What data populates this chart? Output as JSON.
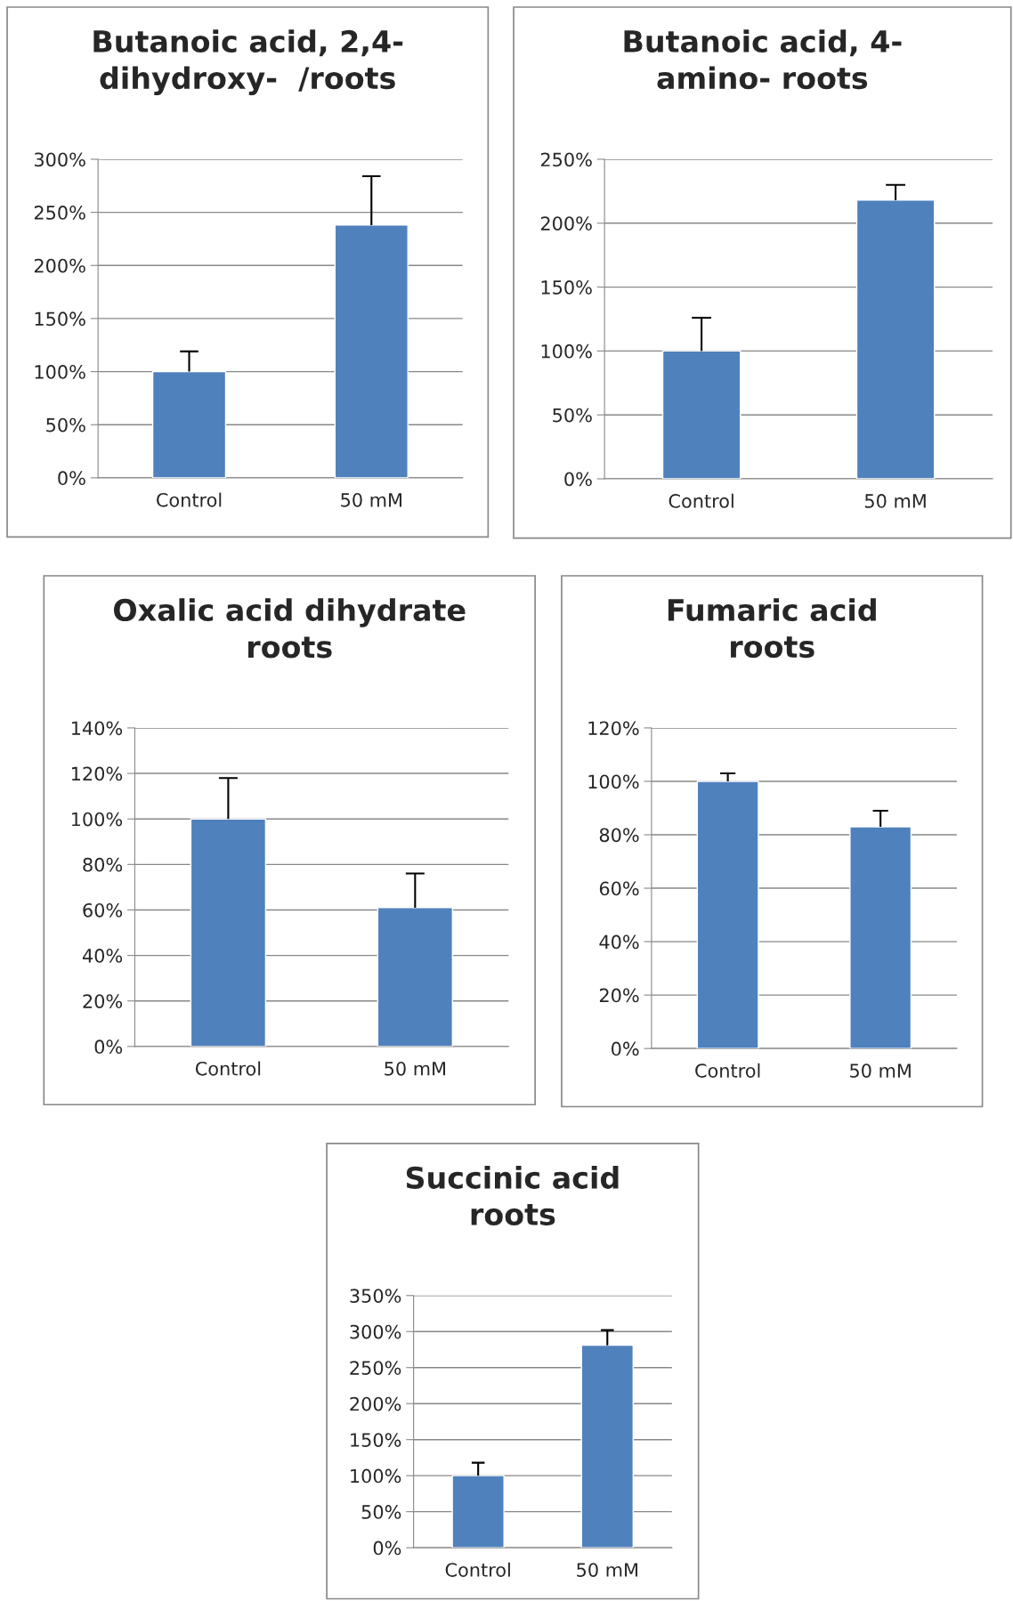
{
  "chart_data": [
    {
      "type": "bar",
      "title": "Butanoic acid, 2,4-\ndihydroxy-  /roots",
      "categories": [
        "Control",
        "50 mM"
      ],
      "values": [
        100,
        238
      ],
      "errors": [
        [
          100,
          119
        ],
        [
          238,
          284
        ]
      ],
      "color": "#4f81bd",
      "ylim": [
        0,
        300
      ],
      "yticks": [
        {
          "value": 0,
          "label": "0%"
        },
        {
          "value": 50,
          "label": "50%"
        },
        {
          "value": 100,
          "label": "100%"
        },
        {
          "value": 150,
          "label": "150%"
        },
        {
          "value": 200,
          "label": "200%"
        },
        {
          "value": 250,
          "label": "250%"
        },
        {
          "value": 300,
          "label": "300%"
        }
      ],
      "grid": "y",
      "legend": false
    },
    {
      "type": "bar",
      "title": "Butanoic acid, 4-\namino- roots",
      "categories": [
        "Control",
        "50 mM"
      ],
      "values": [
        100,
        218
      ],
      "errors": [
        [
          100,
          126
        ],
        [
          218,
          230
        ]
      ],
      "color": "#4f81bd",
      "ylim": [
        0,
        250
      ],
      "yticks": [
        {
          "value": 0,
          "label": "0%"
        },
        {
          "value": 50,
          "label": "50%"
        },
        {
          "value": 100,
          "label": "100%"
        },
        {
          "value": 150,
          "label": "150%"
        },
        {
          "value": 200,
          "label": "200%"
        },
        {
          "value": 250,
          "label": "250%"
        }
      ],
      "grid": "y",
      "legend": false
    },
    {
      "type": "bar",
      "title": "Oxalic acid dihydrate\nroots",
      "categories": [
        "Control",
        "50 mM"
      ],
      "values": [
        100,
        61
      ],
      "errors": [
        [
          100,
          118
        ],
        [
          61,
          76
        ]
      ],
      "color": "#4f81bd",
      "ylim": [
        0,
        140
      ],
      "yticks": [
        {
          "value": 0,
          "label": "0%"
        },
        {
          "value": 20,
          "label": "20%"
        },
        {
          "value": 40,
          "label": "40%"
        },
        {
          "value": 60,
          "label": "60%"
        },
        {
          "value": 80,
          "label": "80%"
        },
        {
          "value": 100,
          "label": "100%"
        },
        {
          "value": 120,
          "label": "120%"
        },
        {
          "value": 140,
          "label": "140%"
        }
      ],
      "grid": "y",
      "legend": false
    },
    {
      "type": "bar",
      "title": "Fumaric acid\nroots",
      "categories": [
        "Control",
        "50 mM"
      ],
      "values": [
        100,
        83
      ],
      "errors": [
        [
          100,
          103
        ],
        [
          83,
          89
        ]
      ],
      "color": "#4f81bd",
      "ylim": [
        0,
        120
      ],
      "yticks": [
        {
          "value": 0,
          "label": "0%"
        },
        {
          "value": 20,
          "label": "20%"
        },
        {
          "value": 40,
          "label": "40%"
        },
        {
          "value": 60,
          "label": "60%"
        },
        {
          "value": 80,
          "label": "80%"
        },
        {
          "value": 100,
          "label": "100%"
        },
        {
          "value": 120,
          "label": "120%"
        }
      ],
      "grid": "y",
      "legend": false
    },
    {
      "type": "bar",
      "title": "Succinic acid\nroots",
      "categories": [
        "Control",
        "50 mM"
      ],
      "values": [
        100,
        281
      ],
      "errors": [
        [
          100,
          118
        ],
        [
          281,
          302
        ]
      ],
      "color": "#4f81bd",
      "ylim": [
        0,
        350
      ],
      "yticks": [
        {
          "value": 0,
          "label": "0%"
        },
        {
          "value": 50,
          "label": "50%"
        },
        {
          "value": 100,
          "label": "100%"
        },
        {
          "value": 150,
          "label": "150%"
        },
        {
          "value": 200,
          "label": "200%"
        },
        {
          "value": 250,
          "label": "250%"
        },
        {
          "value": 300,
          "label": "300%"
        },
        {
          "value": 350,
          "label": "350%"
        }
      ],
      "grid": "y",
      "legend": false
    }
  ]
}
